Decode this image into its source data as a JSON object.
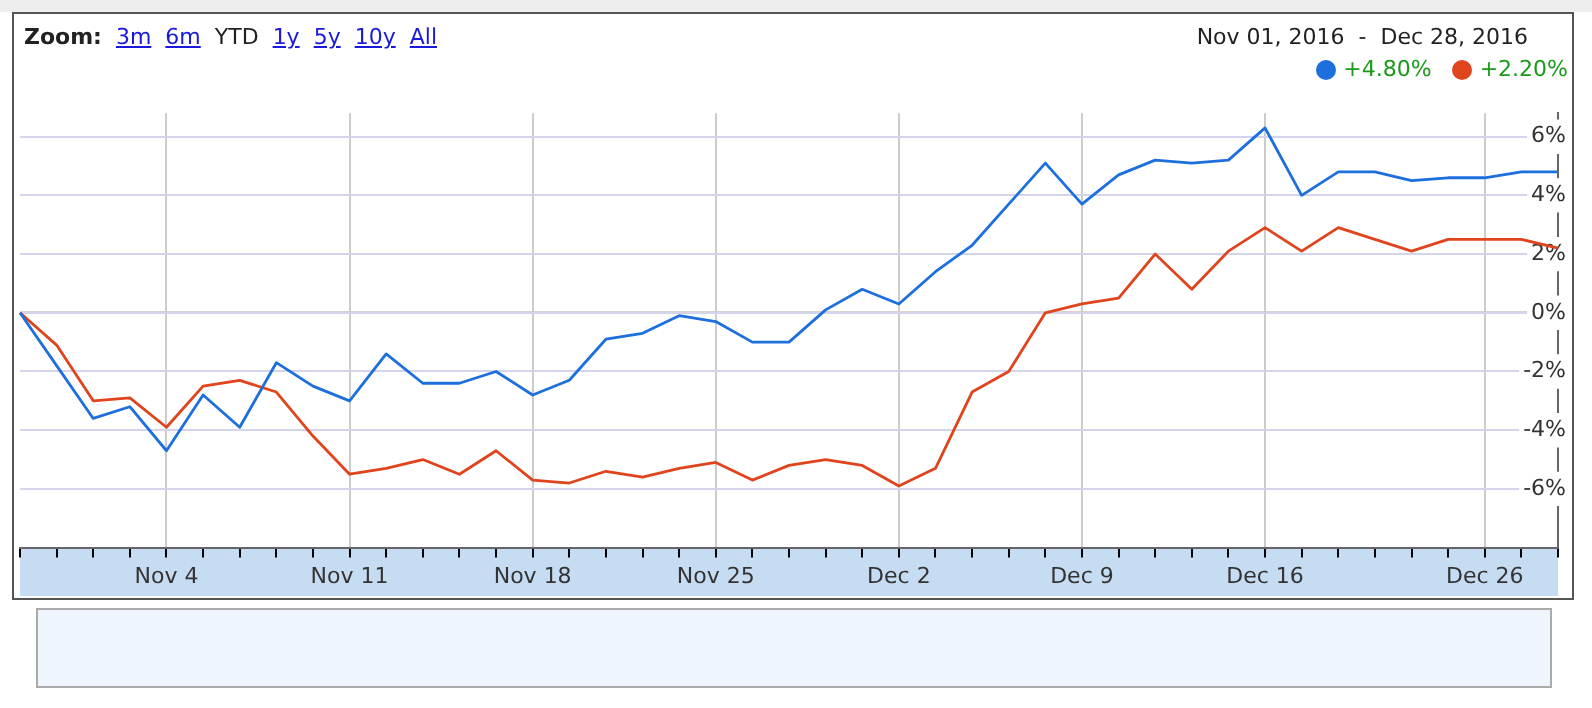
{
  "chart_data": {
    "type": "line",
    "categories": [
      null,
      null,
      null,
      null,
      "Nov 4",
      null,
      null,
      null,
      null,
      "Nov 11",
      null,
      null,
      null,
      null,
      "Nov 18",
      null,
      null,
      null,
      null,
      "Nov 25",
      null,
      null,
      null,
      null,
      "Dec 2",
      null,
      null,
      null,
      null,
      "Dec 9",
      null,
      null,
      null,
      null,
      "Dec 16",
      null,
      null,
      null,
      null,
      null,
      "Dec 26",
      null,
      null
    ],
    "series": [
      {
        "color": "#1c6fdc",
        "values": [
          0,
          -1.8,
          -3.6,
          -3.2,
          -4.7,
          -2.8,
          -3.9,
          -1.7,
          -2.5,
          -3.0,
          -1.4,
          -2.4,
          -2.4,
          -2.0,
          -2.8,
          -2.3,
          -0.9,
          -0.7,
          -0.1,
          -0.3,
          -1.0,
          -1.0,
          0.1,
          0.8,
          0.3,
          1.4,
          2.3,
          3.7,
          5.1,
          3.7,
          4.7,
          5.2,
          5.1,
          5.2,
          6.3,
          4.0,
          4.8,
          4.8,
          4.5,
          4.6,
          4.6,
          4.8,
          4.8
        ]
      },
      {
        "color": "#e0441c",
        "values": [
          0,
          -1.1,
          -3.0,
          -2.9,
          -3.9,
          -2.5,
          -2.3,
          -2.7,
          -4.2,
          -5.5,
          -5.3,
          -5.0,
          -5.5,
          -4.7,
          -5.7,
          -5.8,
          -5.4,
          -5.6,
          -5.3,
          -5.1,
          -5.7,
          -5.2,
          -5.0,
          -5.2,
          -5.9,
          -5.3,
          -2.7,
          -2.0,
          0,
          0.3,
          0.5,
          2.0,
          0.8,
          2.1,
          2.9,
          2.1,
          2.9,
          2.5,
          2.1,
          2.5,
          2.5,
          2.5,
          2.2
        ]
      }
    ],
    "ylim": [
      -8,
      6.8
    ],
    "yticks": [
      {
        "value": -6,
        "label": "-6%"
      },
      {
        "value": -4,
        "label": "-4%"
      },
      {
        "value": -2,
        "label": "-2%"
      },
      {
        "value": 0,
        "label": "0%"
      },
      {
        "value": 2,
        "label": "2%"
      },
      {
        "value": 4,
        "label": "4%"
      },
      {
        "value": 6,
        "label": "6%"
      }
    ],
    "ref_lines": [
      {
        "axis": "y",
        "value": 0,
        "color": "#6d4c41"
      }
    ],
    "grid": true,
    "annotations": [
      "Zoom:",
      "3m",
      "6m",
      "YTD",
      "1y",
      "5y",
      "10y",
      "All",
      "Nov 01, 2016  -  Dec 28, 2016",
      "+4.80%",
      "+2.20%"
    ]
  }
}
